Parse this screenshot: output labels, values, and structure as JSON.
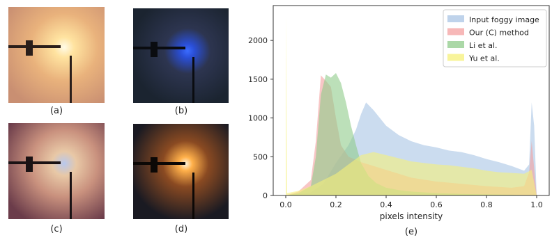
{
  "panels": [
    {
      "caption": "(a)",
      "tone": "warm-glow"
    },
    {
      "caption": "(b)",
      "tone": "blue-dark"
    },
    {
      "caption": "(c)",
      "tone": "pink-haze"
    },
    {
      "caption": "(d)",
      "tone": "orange-dark"
    }
  ],
  "chart_data": {
    "type": "area",
    "caption": "(e)",
    "xlabel": "pixels intensity",
    "ylabel": "",
    "xlim": [
      -0.05,
      1.05
    ],
    "ylim": [
      0,
      2450
    ],
    "xticks": [
      0.0,
      0.2,
      0.4,
      0.6,
      0.8,
      1.0
    ],
    "xtick_labels": [
      "0.0",
      "0.2",
      "0.4",
      "0.6",
      "0.8",
      "1.0"
    ],
    "yticks": [
      0,
      500,
      1000,
      1500,
      2000
    ],
    "ytick_labels": [
      "0",
      "500",
      "1000",
      "1500",
      "2000"
    ],
    "grid": false,
    "legend_position": "top-right",
    "series": [
      {
        "name": "Input foggy image",
        "color": "#a9c4e4",
        "x": [
          0.0,
          0.05,
          0.1,
          0.15,
          0.2,
          0.25,
          0.28,
          0.3,
          0.32,
          0.35,
          0.4,
          0.45,
          0.5,
          0.55,
          0.6,
          0.65,
          0.7,
          0.75,
          0.8,
          0.85,
          0.9,
          0.95,
          0.97,
          0.98,
          0.99,
          1.0
        ],
        "y": [
          0,
          20,
          40,
          150,
          420,
          650,
          850,
          1050,
          1200,
          1100,
          900,
          780,
          700,
          650,
          620,
          580,
          560,
          520,
          470,
          430,
          380,
          320,
          400,
          1200,
          900,
          0
        ]
      },
      {
        "name": "Our (C) method",
        "color": "#f4a0a0",
        "x": [
          0.0,
          0.05,
          0.1,
          0.12,
          0.14,
          0.16,
          0.18,
          0.2,
          0.22,
          0.25,
          0.28,
          0.3,
          0.35,
          0.4,
          0.45,
          0.5,
          0.6,
          0.7,
          0.8,
          0.9,
          0.95,
          0.97,
          0.98,
          1.0
        ],
        "y": [
          0,
          50,
          200,
          700,
          1550,
          1480,
          1400,
          1000,
          650,
          500,
          460,
          430,
          380,
          330,
          280,
          230,
          180,
          150,
          120,
          100,
          120,
          300,
          700,
          0
        ]
      },
      {
        "name": "Li et al.",
        "color": "#8fcb8a",
        "x": [
          0.0,
          0.05,
          0.1,
          0.12,
          0.14,
          0.16,
          0.18,
          0.2,
          0.22,
          0.24,
          0.26,
          0.28,
          0.3,
          0.33,
          0.36,
          0.4,
          0.45,
          0.5,
          0.6,
          0.7,
          0.8,
          0.9,
          0.95,
          1.0
        ],
        "y": [
          0,
          30,
          120,
          500,
          1300,
          1560,
          1520,
          1580,
          1450,
          1200,
          900,
          650,
          420,
          250,
          160,
          100,
          70,
          50,
          30,
          20,
          15,
          10,
          5,
          0
        ]
      },
      {
        "name": "Yu et al.",
        "color": "#f5f07a",
        "x": [
          0.0,
          0.0,
          0.005,
          0.05,
          0.1,
          0.15,
          0.2,
          0.25,
          0.3,
          0.35,
          0.4,
          0.45,
          0.5,
          0.55,
          0.6,
          0.65,
          0.7,
          0.75,
          0.8,
          0.85,
          0.9,
          0.95,
          0.98,
          1.0
        ],
        "y": [
          0,
          2330,
          30,
          60,
          120,
          200,
          280,
          400,
          520,
          560,
          520,
          480,
          440,
          420,
          400,
          390,
          370,
          350,
          320,
          300,
          290,
          280,
          330,
          0
        ]
      }
    ]
  }
}
